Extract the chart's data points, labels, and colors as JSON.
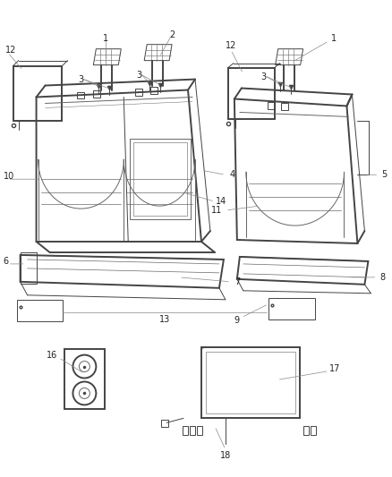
{
  "bg_color": "#ffffff",
  "lc": "#444444",
  "lc_thin": "#666666",
  "lc_leader": "#888888",
  "lw_main": 1.4,
  "lw_thin": 0.7,
  "lw_leader": 0.5,
  "label_fs": 7.0,
  "label_color": "#222222",
  "fig_w": 4.38,
  "fig_h": 5.33
}
